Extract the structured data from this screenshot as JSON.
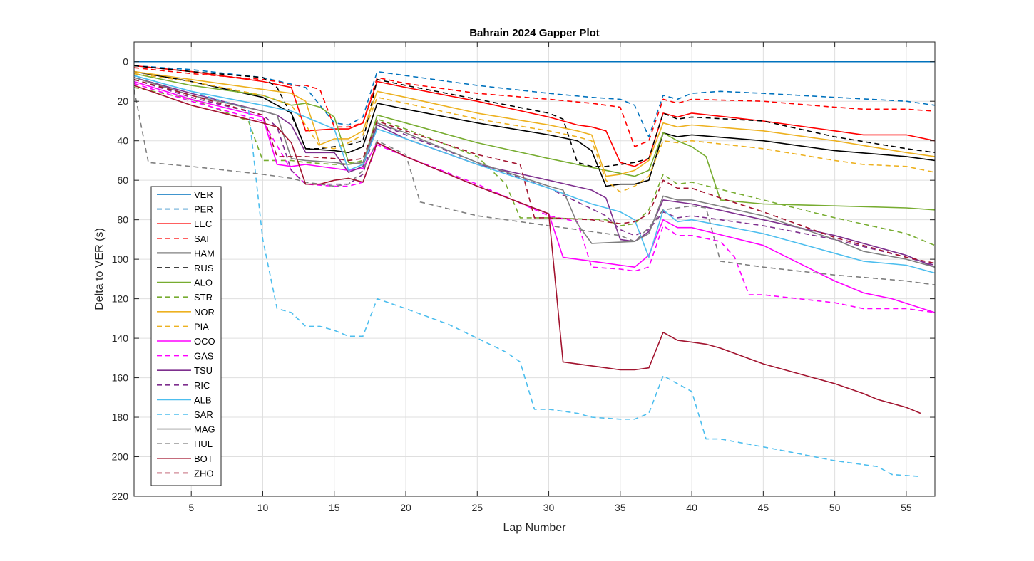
{
  "chart_data": {
    "type": "line",
    "title": "Bahrain 2024 Gapper Plot",
    "xlabel": "Lap Number",
    "ylabel": "Delta to VER (s)",
    "xlim": [
      1,
      57
    ],
    "ylim": [
      -10,
      220
    ],
    "y_reversed": true,
    "xticks": [
      5,
      10,
      15,
      20,
      25,
      30,
      35,
      40,
      45,
      50,
      55
    ],
    "yticks": [
      0,
      20,
      40,
      60,
      80,
      100,
      120,
      140,
      160,
      180,
      200,
      220
    ],
    "grid": true,
    "legend_position": "left",
    "series": [
      {
        "name": "VER",
        "color": "#0072BD",
        "dash": false,
        "x": [
          1,
          57
        ],
        "y": [
          0,
          0
        ]
      },
      {
        "name": "PER",
        "color": "#0072BD",
        "dash": true,
        "x": [
          1,
          5,
          10,
          13,
          15,
          16,
          17,
          18,
          20,
          25,
          30,
          33,
          35,
          36,
          37,
          38,
          39,
          40,
          42,
          45,
          50,
          55,
          57
        ],
        "y": [
          2,
          4,
          8,
          13,
          31,
          32,
          28,
          5,
          7,
          12,
          16,
          18,
          19,
          22,
          38,
          17,
          19,
          16,
          15,
          16,
          18,
          20,
          22
        ]
      },
      {
        "name": "LEC",
        "color": "#FF0000",
        "dash": false,
        "x": [
          1,
          5,
          10,
          12,
          13,
          15,
          16,
          17,
          18,
          20,
          25,
          30,
          32,
          33,
          34,
          35,
          36,
          37,
          38,
          39,
          40,
          45,
          50,
          52,
          55,
          57
        ],
        "y": [
          2,
          5,
          10,
          13,
          35,
          34,
          34,
          31,
          10,
          13,
          20,
          28,
          32,
          33,
          35,
          51,
          53,
          49,
          26,
          28,
          26,
          30,
          35,
          37,
          37,
          40
        ]
      },
      {
        "name": "SAI",
        "color": "#FF0000",
        "dash": true,
        "x": [
          1,
          5,
          10,
          11,
          12,
          13,
          14,
          15,
          16,
          17,
          18,
          20,
          25,
          30,
          33,
          35,
          36,
          37,
          38,
          39,
          40,
          45,
          50,
          52,
          55,
          57
        ],
        "y": [
          3,
          6,
          9,
          10,
          12,
          12,
          14,
          33,
          33,
          31,
          8,
          11,
          16,
          19,
          21,
          23,
          43,
          40,
          19,
          21,
          19,
          20,
          23,
          24,
          24,
          25
        ]
      },
      {
        "name": "HAM",
        "color": "#000000",
        "dash": false,
        "x": [
          1,
          5,
          10,
          12,
          13,
          15,
          16,
          17,
          18,
          20,
          25,
          30,
          32,
          33,
          34,
          35,
          36,
          37,
          38,
          39,
          40,
          45,
          50,
          55,
          57
        ],
        "y": [
          5,
          10,
          18,
          26,
          44,
          45,
          46,
          43,
          21,
          24,
          31,
          37,
          40,
          45,
          63,
          62,
          62,
          60,
          36,
          38,
          37,
          40,
          45,
          48,
          50
        ]
      },
      {
        "name": "RUS",
        "color": "#000000",
        "dash": true,
        "x": [
          1,
          5,
          10,
          11,
          12,
          13,
          14,
          15,
          16,
          17,
          18,
          20,
          25,
          30,
          31,
          32,
          33,
          34,
          35,
          36,
          37,
          38,
          39,
          40,
          45,
          50,
          55,
          57
        ],
        "y": [
          2,
          5,
          8,
          13,
          27,
          44,
          44,
          43,
          42,
          40,
          9,
          12,
          19,
          26,
          29,
          51,
          53,
          53,
          52,
          51,
          49,
          26,
          29,
          28,
          30,
          38,
          44,
          46
        ]
      },
      {
        "name": "ALO",
        "color": "#77AC30",
        "dash": false,
        "x": [
          1,
          5,
          10,
          12,
          13,
          14,
          15,
          16,
          17,
          18,
          20,
          25,
          30,
          34,
          36,
          37,
          38,
          39,
          40,
          41,
          42,
          45,
          50,
          55,
          57
        ],
        "y": [
          6,
          12,
          17,
          22,
          21,
          23,
          28,
          51,
          52,
          27,
          31,
          41,
          49,
          55,
          58,
          55,
          36,
          40,
          43,
          48,
          70,
          72,
          73,
          74,
          75
        ]
      },
      {
        "name": "STR",
        "color": "#77AC30",
        "dash": true,
        "x": [
          1,
          5,
          9,
          10,
          12,
          13,
          15,
          16,
          17,
          18,
          20,
          25,
          27,
          28,
          30,
          34,
          35,
          36,
          37,
          38,
          39,
          40,
          45,
          50,
          55,
          57
        ],
        "y": [
          13,
          19,
          30,
          50,
          50,
          51,
          52,
          52,
          50,
          29,
          34,
          48,
          62,
          79,
          79,
          80,
          83,
          82,
          75,
          57,
          62,
          61,
          70,
          79,
          87,
          93
        ]
      },
      {
        "name": "NOR",
        "color": "#EDB120",
        "dash": false,
        "x": [
          1,
          5,
          10,
          12,
          13,
          14,
          15,
          16,
          17,
          18,
          20,
          25,
          30,
          32,
          33,
          34,
          35,
          36,
          37,
          38,
          39,
          40,
          45,
          50,
          55,
          57
        ],
        "y": [
          5,
          9,
          14,
          16,
          20,
          42,
          39,
          39,
          35,
          15,
          18,
          26,
          32,
          35,
          37,
          58,
          57,
          55,
          50,
          31,
          33,
          32,
          35,
          40,
          46,
          48
        ]
      },
      {
        "name": "PIA",
        "color": "#EDB120",
        "dash": true,
        "x": [
          1,
          5,
          10,
          12,
          13,
          14,
          15,
          16,
          17,
          18,
          20,
          25,
          30,
          32,
          33,
          34,
          35,
          36,
          37,
          38,
          39,
          40,
          45,
          50,
          52,
          55,
          57
        ],
        "y": [
          6,
          10,
          17,
          22,
          32,
          43,
          44,
          41,
          37,
          18,
          21,
          29,
          35,
          38,
          40,
          60,
          66,
          63,
          58,
          40,
          41,
          40,
          44,
          50,
          52,
          53,
          56
        ]
      },
      {
        "name": "OCO",
        "color": "#FF00FF",
        "dash": false,
        "x": [
          1,
          5,
          10,
          11,
          12,
          13,
          15,
          16,
          17,
          18,
          20,
          25,
          30,
          31,
          34,
          35,
          36,
          37,
          38,
          39,
          40,
          45,
          50,
          52,
          54,
          57
        ],
        "y": [
          10,
          19,
          28,
          52,
          53,
          52,
          54,
          55,
          54,
          41,
          48,
          63,
          77,
          99,
          102,
          103,
          104,
          98,
          80,
          84,
          84,
          93,
          111,
          117,
          120,
          127
        ]
      },
      {
        "name": "GAS",
        "color": "#FF00FF",
        "dash": true,
        "x": [
          1,
          5,
          10,
          12,
          13,
          15,
          16,
          17,
          18,
          20,
          25,
          30,
          32,
          33,
          35,
          36,
          37,
          38,
          39,
          40,
          42,
          43,
          44,
          45,
          50,
          52,
          55,
          57
        ],
        "y": [
          11,
          20,
          30,
          55,
          62,
          63,
          63,
          61,
          42,
          48,
          62,
          78,
          81,
          104,
          105,
          106,
          104,
          83,
          88,
          88,
          91,
          99,
          118,
          118,
          122,
          125,
          125,
          127
        ]
      },
      {
        "name": "TSU",
        "color": "#7E2F8E",
        "dash": false,
        "x": [
          1,
          5,
          10,
          11,
          12,
          13,
          14,
          15,
          16,
          17,
          18,
          20,
          25,
          30,
          33,
          34,
          35,
          36,
          37,
          38,
          40,
          45,
          50,
          55,
          57
        ],
        "y": [
          8,
          16,
          25,
          27,
          32,
          46,
          46,
          46,
          56,
          53,
          32,
          39,
          52,
          60,
          65,
          69,
          90,
          91,
          86,
          70,
          72,
          80,
          88,
          98,
          104
        ]
      },
      {
        "name": "RIC",
        "color": "#7E2F8E",
        "dash": true,
        "x": [
          1,
          5,
          10,
          11,
          12,
          13,
          15,
          16,
          17,
          18,
          20,
          25,
          30,
          34,
          35,
          36,
          37,
          38,
          39,
          40,
          45,
          50,
          55,
          57
        ],
        "y": [
          9,
          18,
          27,
          33,
          55,
          62,
          62,
          62,
          57,
          31,
          37,
          51,
          64,
          78,
          85,
          88,
          85,
          76,
          79,
          78,
          83,
          90,
          99,
          103
        ]
      },
      {
        "name": "ALB",
        "color": "#4DBEEE",
        "dash": false,
        "x": [
          1,
          5,
          10,
          12,
          13,
          15,
          16,
          17,
          18,
          20,
          25,
          30,
          33,
          34,
          35,
          36,
          37,
          38,
          39,
          40,
          45,
          50,
          52,
          55,
          57
        ],
        "y": [
          7,
          15,
          22,
          25,
          28,
          34,
          55,
          52,
          34,
          39,
          52,
          64,
          72,
          74,
          76,
          80,
          99,
          75,
          81,
          80,
          87,
          97,
          101,
          103,
          107
        ]
      },
      {
        "name": "SAR",
        "color": "#4DBEEE",
        "dash": true,
        "x": [
          1,
          5,
          9,
          10,
          11,
          12,
          13,
          14,
          15,
          16,
          17,
          18,
          20,
          23,
          27,
          28,
          29,
          30,
          31,
          32,
          33,
          35,
          36,
          37,
          38,
          39,
          40,
          41,
          42,
          45,
          50,
          53,
          54,
          56
        ],
        "y": [
          7,
          15,
          24,
          90,
          125,
          127,
          134,
          134,
          136,
          139,
          139,
          120,
          125,
          133,
          147,
          152,
          176,
          176,
          177,
          178,
          180,
          181,
          181,
          178,
          159,
          163,
          167,
          191,
          191,
          195,
          202,
          205,
          209,
          210
        ]
      },
      {
        "name": "MAG",
        "color": "#7F7F7F",
        "dash": false,
        "x": [
          1,
          5,
          10,
          11,
          12,
          13,
          15,
          16,
          17,
          18,
          20,
          25,
          30,
          31,
          32,
          33,
          36,
          37,
          38,
          39,
          40,
          45,
          50,
          52,
          55,
          57
        ],
        "y": [
          8,
          17,
          25,
          27,
          49,
          50,
          51,
          52,
          51,
          31,
          36,
          51,
          63,
          65,
          82,
          92,
          91,
          87,
          68,
          70,
          70,
          78,
          90,
          96,
          100,
          104
        ]
      },
      {
        "name": "HUL",
        "color": "#7F7F7F",
        "dash": true,
        "x": [
          1,
          2,
          5,
          10,
          12,
          13,
          15,
          16,
          17,
          18,
          20,
          21,
          25,
          30,
          35,
          36,
          37,
          38,
          40,
          41,
          42,
          45,
          50,
          55,
          57
        ],
        "y": [
          14,
          51,
          53,
          57,
          59,
          61,
          63,
          62,
          55,
          40,
          47,
          71,
          78,
          83,
          88,
          91,
          84,
          75,
          73,
          74,
          101,
          104,
          108,
          111,
          113
        ]
      },
      {
        "name": "BOT",
        "color": "#A2142F",
        "dash": false,
        "x": [
          1,
          5,
          10,
          11,
          12,
          13,
          14,
          15,
          16,
          17,
          18,
          20,
          25,
          30,
          31,
          33,
          34,
          35,
          36,
          37,
          38,
          39,
          40,
          41,
          42,
          45,
          50,
          52,
          53,
          55,
          56
        ],
        "y": [
          12,
          22,
          31,
          33,
          41,
          62,
          62,
          60,
          59,
          61,
          41,
          48,
          63,
          77,
          152,
          154,
          155,
          156,
          156,
          155,
          137,
          141,
          142,
          143,
          145,
          153,
          163,
          168,
          171,
          175,
          178
        ]
      },
      {
        "name": "ZHO",
        "color": "#A2142F",
        "dash": true,
        "x": [
          1,
          5,
          10,
          11,
          13,
          15,
          16,
          17,
          18,
          20,
          25,
          28,
          29,
          30,
          33,
          34,
          35,
          36,
          37,
          38,
          39,
          40,
          42,
          45,
          50,
          55,
          57
        ],
        "y": [
          9,
          17,
          27,
          48,
          48,
          49,
          50,
          49,
          30,
          35,
          47,
          52,
          79,
          79,
          80,
          81,
          82,
          81,
          77,
          60,
          64,
          64,
          69,
          76,
          89,
          99,
          102
        ]
      }
    ]
  }
}
